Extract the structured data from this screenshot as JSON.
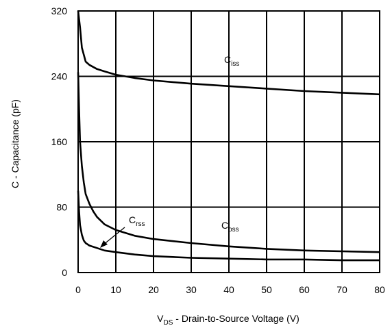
{
  "chart_data": {
    "type": "line",
    "xlabel": {
      "main": "V",
      "sub": "DS",
      "rest": " - Drain-to-Source Voltage (V)"
    },
    "ylabel": "C - Capacitance (pF)",
    "xlim": [
      0,
      80
    ],
    "ylim": [
      0,
      320
    ],
    "xticks": [
      0,
      10,
      20,
      30,
      40,
      50,
      60,
      70,
      80
    ],
    "yticks": [
      0,
      80,
      160,
      240,
      320
    ],
    "grid": true,
    "series": [
      {
        "name": "Ciss",
        "label_main": "C",
        "label_sub": "iss",
        "x": [
          0,
          0.5,
          1,
          2,
          3,
          5,
          7,
          10,
          15,
          20,
          30,
          40,
          50,
          60,
          70,
          80
        ],
        "y": [
          320,
          300,
          275,
          258,
          254,
          249,
          246,
          242,
          238,
          235,
          231,
          228,
          225,
          222,
          220,
          218
        ]
      },
      {
        "name": "Coss",
        "label_main": "C",
        "label_sub": "oss",
        "x": [
          0,
          0.25,
          0.5,
          1,
          1.5,
          2,
          3,
          4,
          5,
          7,
          10,
          15,
          20,
          30,
          40,
          50,
          60,
          70,
          80
        ],
        "y": [
          245,
          200,
          160,
          130,
          110,
          96,
          84,
          75,
          68,
          59,
          52,
          45,
          41,
          36,
          32,
          29,
          27,
          26,
          25
        ]
      },
      {
        "name": "Crss",
        "label_main": "C",
        "label_sub": "rss",
        "x": [
          0,
          0.25,
          0.5,
          1,
          1.5,
          2,
          3,
          5,
          7,
          10,
          15,
          20,
          30,
          40,
          50,
          60,
          70,
          80
        ],
        "y": [
          100,
          75,
          58,
          46,
          39,
          36,
          33,
          30,
          27,
          25,
          22,
          20,
          18,
          17,
          16,
          16,
          15,
          15
        ]
      }
    ]
  }
}
